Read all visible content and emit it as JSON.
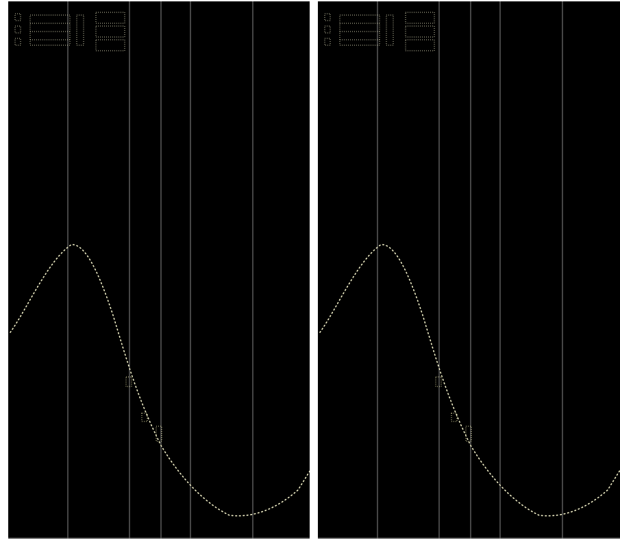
{
  "colors": {
    "screen_background": "#000000",
    "frame": "#ffffff",
    "gridline": "#8a8a8a",
    "trace": "#f2f0c8",
    "marker": "#e8e4a8",
    "readout_text": "#d9d6b4"
  },
  "screens": [
    {
      "readout": {
        "lines": [
          "",
          "",
          ""
        ],
        "icon": "measurement-readout-icon"
      },
      "markers": [
        {
          "label": ""
        },
        {
          "label": ""
        },
        {
          "label": ""
        }
      ]
    },
    {
      "readout": {
        "lines": [
          "",
          "",
          ""
        ],
        "icon": "measurement-readout-icon"
      },
      "markers": [
        {
          "label": ""
        },
        {
          "label": ""
        },
        {
          "label": ""
        }
      ]
    }
  ]
}
